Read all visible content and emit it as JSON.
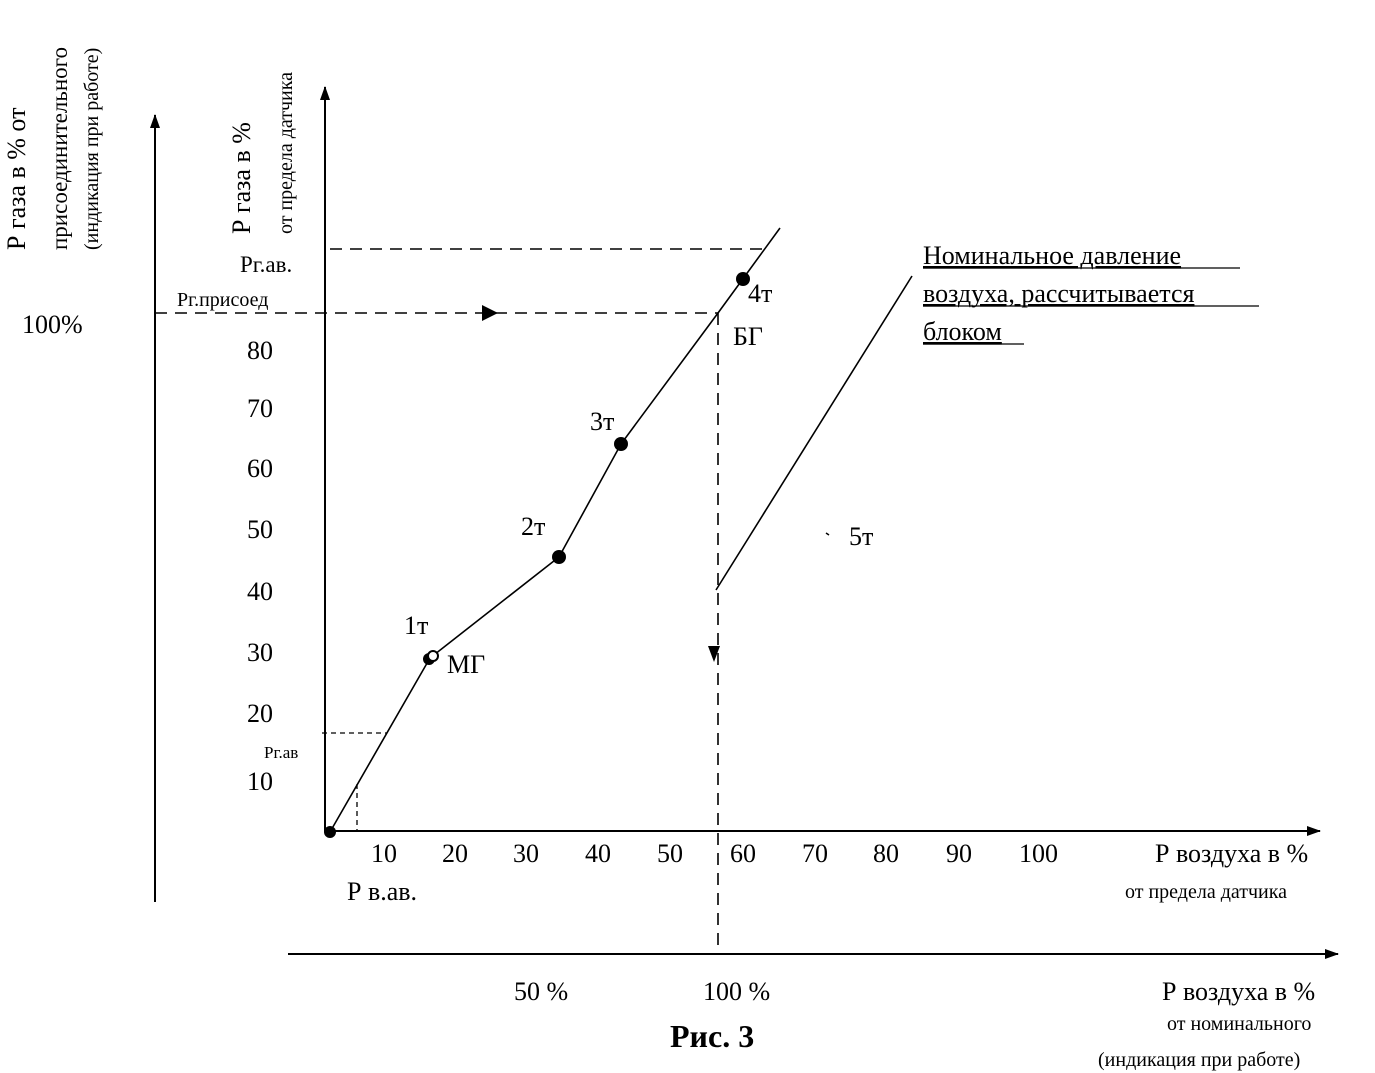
{
  "outer_axis_label": {
    "line1": "Р газа в % от",
    "line2": "присоединительного",
    "line3": "(индикация при работе)"
  },
  "inner_axis_label": {
    "line1": "Р газа в %",
    "line2": "от предела датчика"
  },
  "outer_y_mark": "100%",
  "y_ticks": [
    "80",
    "70",
    "60",
    "50",
    "40",
    "30",
    "20",
    "10"
  ],
  "x_ticks": [
    "10",
    "20",
    "30",
    "40",
    "50",
    "60",
    "70",
    "80",
    "90",
    "100"
  ],
  "x_axis_label": {
    "line1": "Р воздуха  в %",
    "line2": "от предела датчика"
  },
  "bottom_ticks": [
    "50 %",
    "100 %"
  ],
  "bottom_axis_label": {
    "line1": "Р воздуха  в %",
    "line2": "от номинального",
    "line3": "(индикация при работе)"
  },
  "labels": {
    "pg_av_top": "Рг.ав.",
    "pg_prisoed": "Рг.присоед",
    "pg_av_low": "Рг.ав",
    "pv_av": "Р в.ав.",
    "mg": "МГ",
    "bg": "БГ"
  },
  "points": [
    "1т",
    "2т",
    "3т",
    "4т",
    "5т"
  ],
  "annotation": {
    "line1": "Номинальное давление",
    "line2": "воздуха, рассчитывается",
    "line3": "блоком"
  },
  "caption": "Рис. 3"
}
